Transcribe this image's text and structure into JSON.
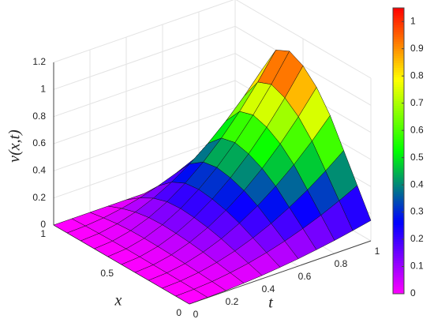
{
  "chart_data": {
    "type": "surface",
    "zlabel": "v(x,t)",
    "xlabel": "x",
    "ylabel": "t",
    "x": [
      0,
      0.1,
      0.2,
      0.3,
      0.4,
      0.5,
      0.6,
      0.7,
      0.8,
      0.9,
      1
    ],
    "y": [
      0,
      0.1,
      0.2,
      0.3,
      0.4,
      0.5,
      0.6,
      0.7,
      0.8,
      0.9,
      1
    ],
    "z": [
      [
        0,
        0,
        0,
        0,
        0,
        0,
        0,
        0,
        0,
        0,
        0
      ],
      [
        0.002,
        0.004,
        0.006,
        0.008,
        0.009,
        0.01,
        0.011,
        0.01,
        0.008,
        0.005,
        0
      ],
      [
        0.006,
        0.014,
        0.022,
        0.03,
        0.036,
        0.04,
        0.042,
        0.04,
        0.032,
        0.018,
        0
      ],
      [
        0.014,
        0.032,
        0.05,
        0.068,
        0.081,
        0.09,
        0.095,
        0.09,
        0.072,
        0.041,
        0
      ],
      [
        0.024,
        0.056,
        0.088,
        0.12,
        0.144,
        0.16,
        0.168,
        0.16,
        0.128,
        0.072,
        0
      ],
      [
        0.038,
        0.088,
        0.138,
        0.188,
        0.225,
        0.25,
        0.263,
        0.25,
        0.2,
        0.113,
        0
      ],
      [
        0.054,
        0.126,
        0.198,
        0.27,
        0.324,
        0.36,
        0.378,
        0.36,
        0.288,
        0.162,
        0
      ],
      [
        0.074,
        0.172,
        0.27,
        0.368,
        0.441,
        0.49,
        0.515,
        0.49,
        0.392,
        0.221,
        0
      ],
      [
        0.096,
        0.224,
        0.352,
        0.48,
        0.576,
        0.64,
        0.672,
        0.64,
        0.512,
        0.288,
        0
      ],
      [
        0.122,
        0.284,
        0.446,
        0.608,
        0.729,
        0.81,
        0.851,
        0.81,
        0.648,
        0.365,
        0
      ],
      [
        0.15,
        0.35,
        0.55,
        0.75,
        0.9,
        1,
        1.05,
        1,
        0.8,
        0.45,
        0
      ]
    ],
    "xlim": [
      0,
      1
    ],
    "ylim": [
      0,
      1
    ],
    "zlim": [
      0,
      1.2
    ],
    "xticks": [
      0,
      0.5,
      1
    ],
    "yticks": [
      0,
      0.2,
      0.4,
      0.6,
      0.8,
      1
    ],
    "zticks": [
      0,
      0.2,
      0.4,
      0.6,
      0.8,
      1,
      1.2
    ],
    "clim": [
      0,
      1.05
    ],
    "cticks": [
      0,
      0.1,
      0.2,
      0.3,
      0.4,
      0.5,
      0.6,
      0.7,
      0.8,
      0.9,
      1
    ],
    "colormap": [
      "#ff00ff",
      "#0000ff",
      "#00ff00",
      "#ffff00",
      "#ff0000"
    ],
    "grid": true
  }
}
